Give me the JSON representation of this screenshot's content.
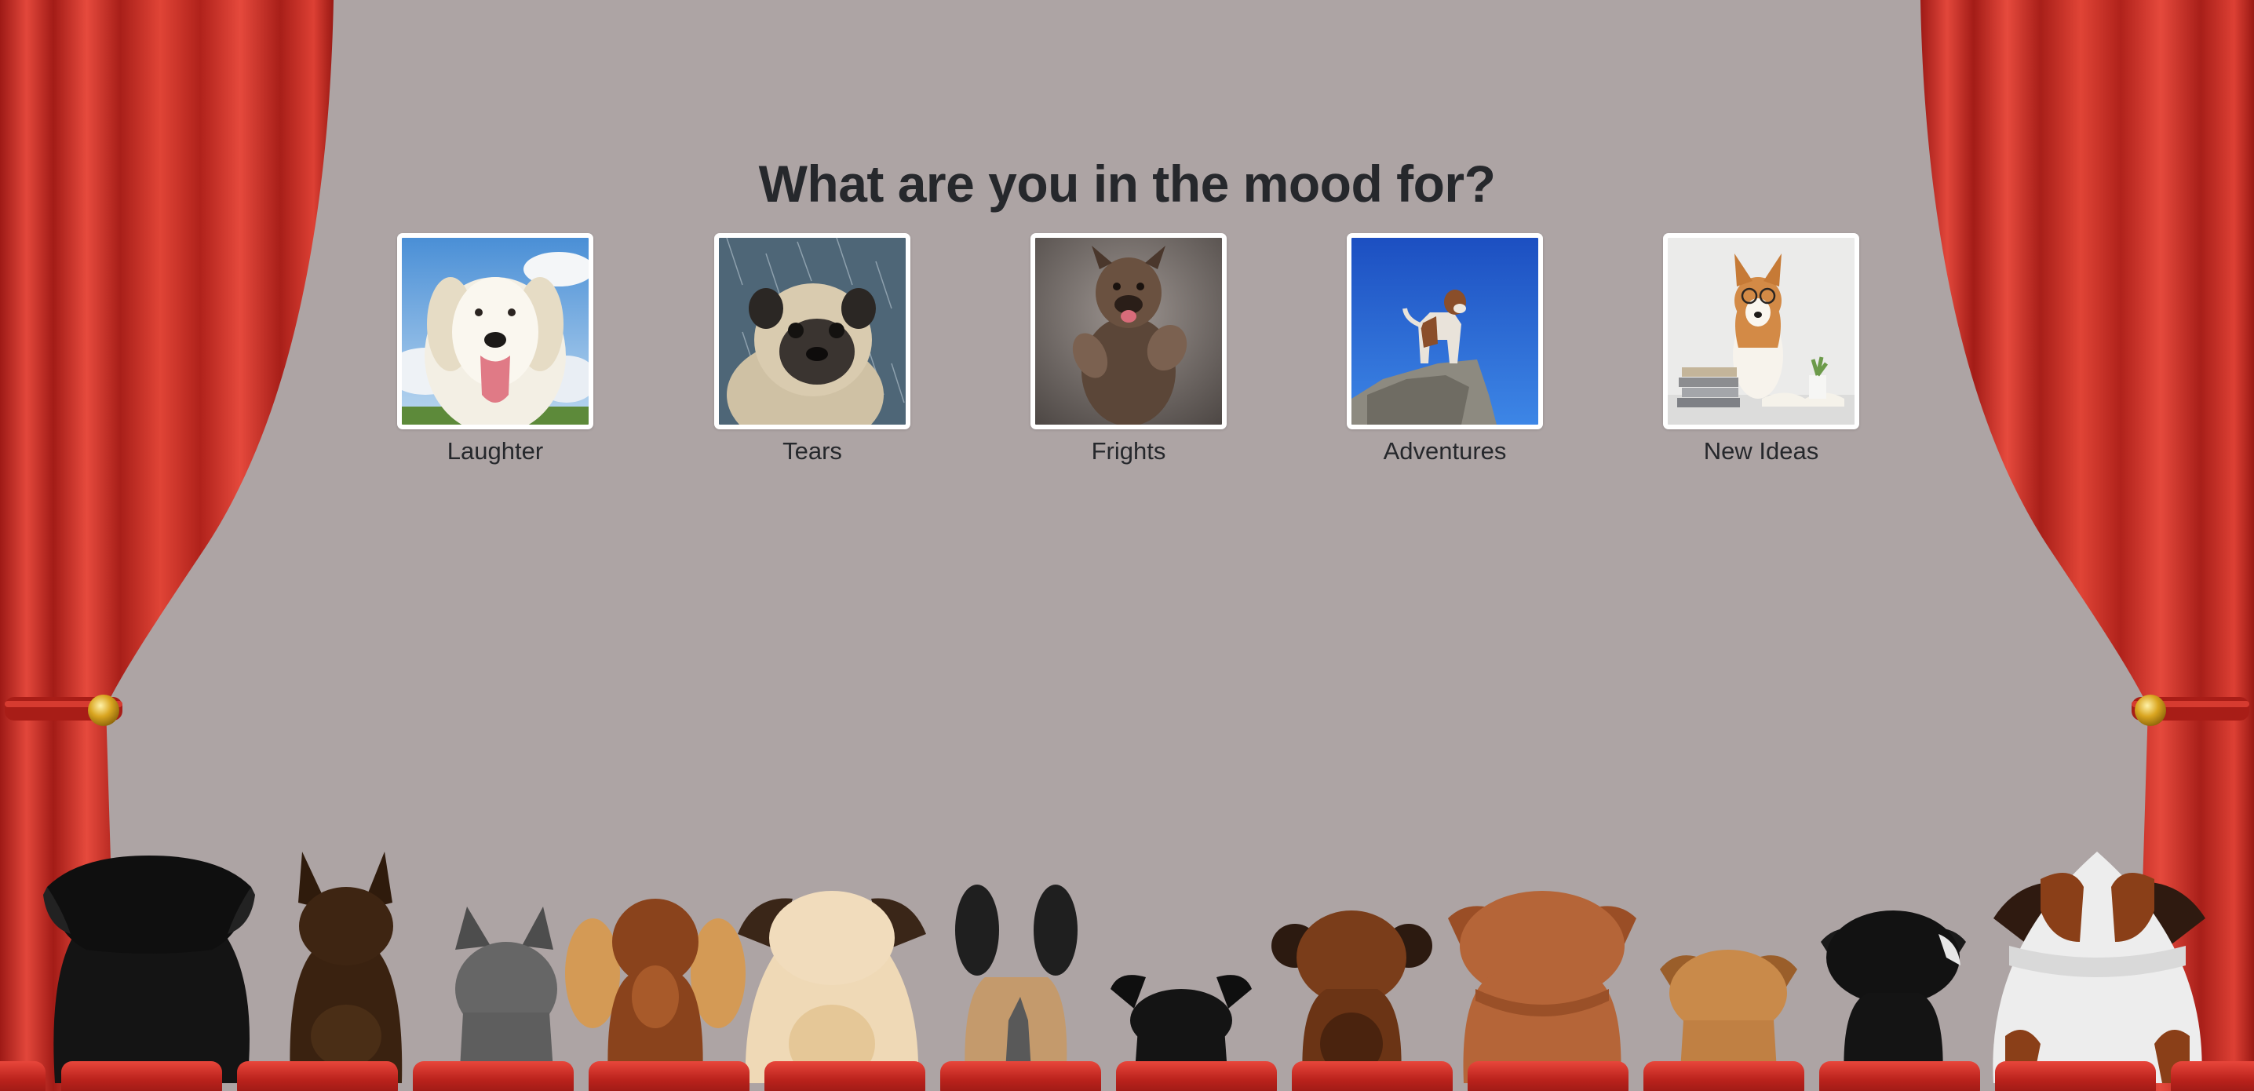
{
  "page": {
    "heading": "What are you in the mood for?"
  },
  "choices": [
    {
      "label": "Laughter",
      "image": "happy-white-dog-photo"
    },
    {
      "label": "Tears",
      "image": "pug-in-rain-photo"
    },
    {
      "label": "Frights",
      "image": "scared-dog-photo"
    },
    {
      "label": "Adventures",
      "image": "dog-on-rock-photo"
    },
    {
      "label": "New Ideas",
      "image": "dog-with-glasses-and-books-photo"
    }
  ],
  "colors": {
    "background": "#ada4a4",
    "curtain": "#c8312a",
    "seat": "#c0251f",
    "text": "#26282c"
  }
}
